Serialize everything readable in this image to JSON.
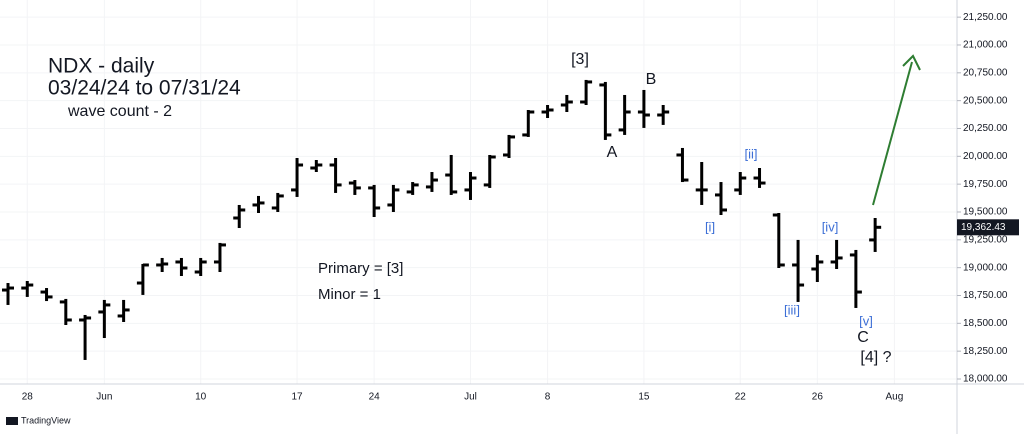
{
  "chart_data": {
    "type": "ohlc",
    "title": "NDX - daily",
    "subtitle": "03/24/24 to 07/31/24",
    "color": "#000000",
    "grid": true,
    "categories": [
      null,
      "28",
      null,
      null,
      null,
      "Jun",
      null,
      null,
      null,
      null,
      "10",
      null,
      null,
      null,
      null,
      "17",
      null,
      null,
      null,
      "24",
      null,
      null,
      null,
      null,
      "Jul",
      null,
      null,
      null,
      "8",
      null,
      null,
      null,
      null,
      "15",
      null,
      null,
      null,
      null,
      "22",
      null,
      null,
      null,
      "26",
      null,
      null,
      null,
      "Aug"
    ],
    "open": [
      18799,
      18817,
      18781,
      18692,
      18530,
      18602,
      18566,
      18862,
      19024,
      19051,
      18961,
      19051,
      19446,
      19563,
      19536,
      19698,
      19895,
      19922,
      19760,
      19716,
      19563,
      19680,
      19725,
      19832,
      19698,
      19743,
      20012,
      20192,
      20398,
      20461,
      20488,
      20641,
      20237,
      20398,
      20371,
      20012,
      19698,
      19653,
      19698,
      19805,
      19473,
      19024,
      18988,
      19051,
      19114,
      19249,
      null
    ],
    "high": [
      18862,
      18880,
      18817,
      18719,
      18575,
      18710,
      18710,
      19033,
      19087,
      19087,
      19087,
      19222,
      19563,
      19644,
      19671,
      19985,
      19967,
      19985,
      19787,
      19743,
      19743,
      19769,
      19859,
      20012,
      19859,
      20012,
      20192,
      20416,
      20461,
      20551,
      20686,
      20668,
      20551,
      20596,
      20461,
      20075,
      19949,
      19769,
      19859,
      19895,
      19491,
      19249,
      19114,
      19249,
      19159,
      19446,
      null
    ],
    "low": [
      18665,
      18737,
      18700,
      18485,
      18171,
      18368,
      18512,
      18755,
      18961,
      18925,
      18925,
      18961,
      19356,
      19491,
      19500,
      19635,
      19859,
      19671,
      19653,
      19455,
      19500,
      19653,
      19680,
      19653,
      19608,
      19716,
      19985,
      20174,
      20344,
      20398,
      20461,
      20147,
      20192,
      20255,
      20282,
      19769,
      19563,
      19473,
      19653,
      19716,
      18997,
      18692,
      18871,
      18988,
      18638,
      19141,
      null
    ],
    "close": [
      18817,
      18844,
      18737,
      18530,
      18548,
      18665,
      18620,
      19024,
      19033,
      18997,
      19051,
      19204,
      19518,
      19581,
      19644,
      19922,
      19922,
      19743,
      19716,
      19536,
      19698,
      19743,
      19787,
      19680,
      19805,
      19994,
      20174,
      20398,
      20416,
      20488,
      20668,
      20192,
      20398,
      20371,
      20398,
      19787,
      19698,
      19518,
      19805,
      19760,
      19024,
      18844,
      19051,
      19087,
      18781,
      19362.43,
      null
    ],
    "last_price_label": "19,362.43",
    "ylim": [
      17955,
      21404
    ],
    "yticks": [
      {
        "value": 18000,
        "label": "18,000.00"
      },
      {
        "value": 18250,
        "label": "18,250.00"
      },
      {
        "value": 18500,
        "label": "18,500.00"
      },
      {
        "value": 18750,
        "label": "18,750.00"
      },
      {
        "value": 19000,
        "label": "19,000.00"
      },
      {
        "value": 19250,
        "label": "19,250.00"
      },
      {
        "value": 19500,
        "label": "19,500.00"
      },
      {
        "value": 19750,
        "label": "19,750.00"
      },
      {
        "value": 20000,
        "label": "20,000.00"
      },
      {
        "value": 20250,
        "label": "20,250.00"
      },
      {
        "value": 20500,
        "label": "20,500.00"
      },
      {
        "value": 20750,
        "label": "20,750.00"
      },
      {
        "value": 21000,
        "label": "21,000.00"
      },
      {
        "value": 21250,
        "label": "21,250.00"
      }
    ],
    "annotations": [
      {
        "text": "wave count - 2",
        "color": "#131722"
      },
      {
        "text": "[3]",
        "color": "#131722"
      },
      {
        "text": "B",
        "color": "#131722"
      },
      {
        "text": "A",
        "color": "#131722"
      },
      {
        "text": "[ii]",
        "color": "#3d6fd6"
      },
      {
        "text": "[i]",
        "color": "#3d6fd6"
      },
      {
        "text": "[iv]",
        "color": "#3d6fd6"
      },
      {
        "text": "[iii]",
        "color": "#3d6fd6"
      },
      {
        "text": "[v]",
        "color": "#3d6fd6"
      },
      {
        "text": "C",
        "color": "#131722"
      },
      {
        "text": "[4] ?",
        "color": "#131722"
      },
      {
        "text": "Primary = [3]",
        "color": "#131722"
      },
      {
        "text": "Minor = 1",
        "color": "#131722"
      }
    ],
    "watermark": "TradingView"
  }
}
